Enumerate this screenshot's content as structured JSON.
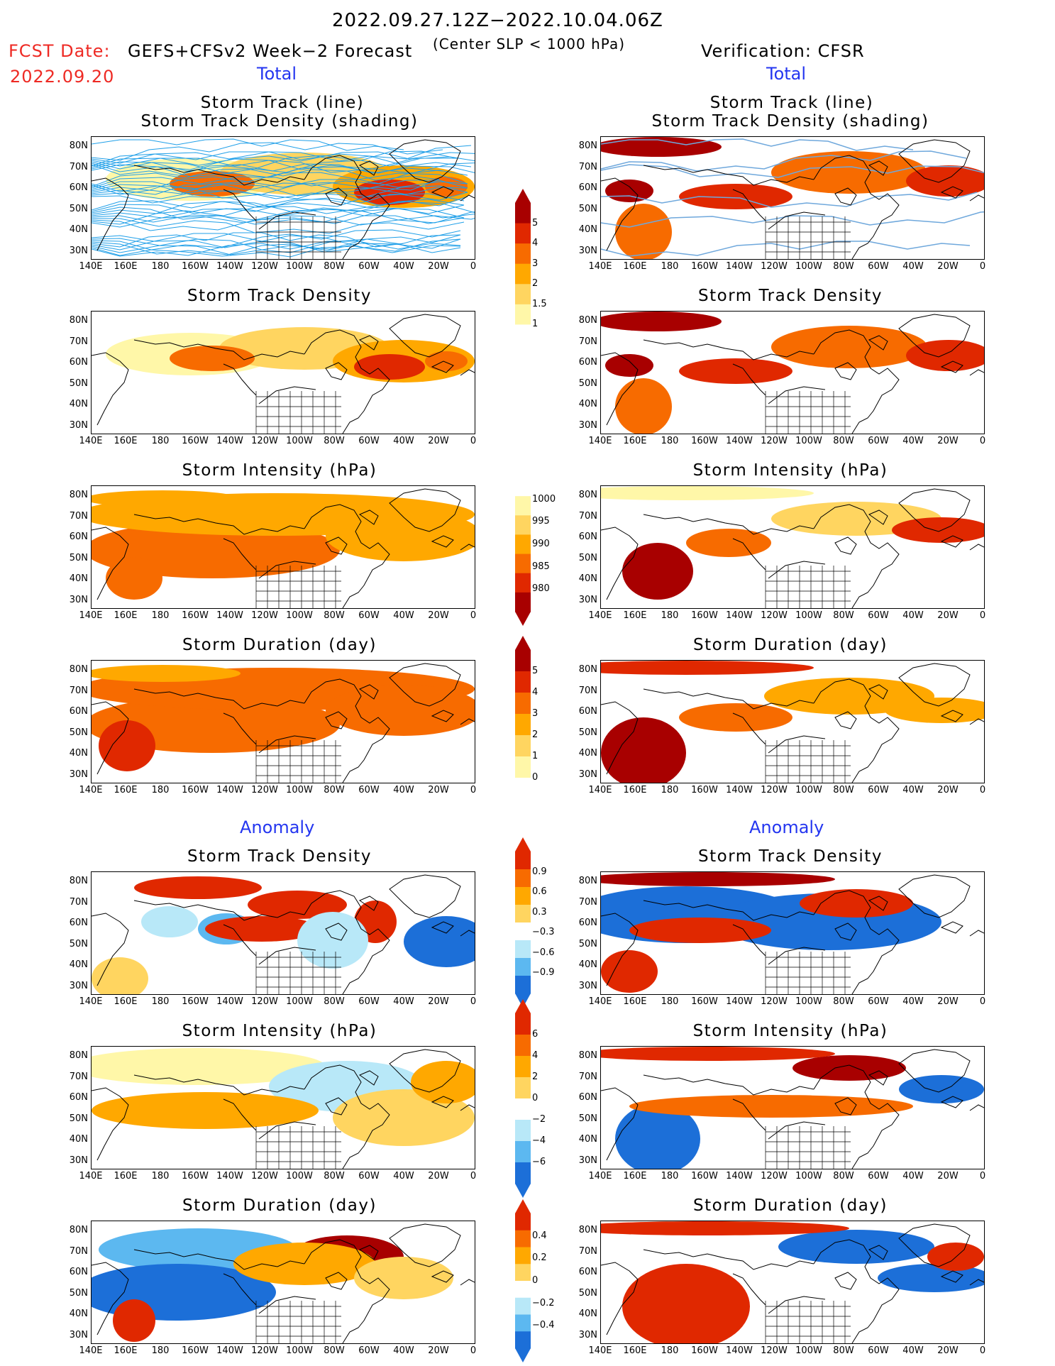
{
  "header": {
    "date_range": "2022.09.27.12Z−2022.10.04.06Z",
    "fcst_label": "FCST Date:",
    "fcst_date": "2022.09.20",
    "model": "GEFS+CFSv2 Week−2 Forecast",
    "criterion": "(Center SLP < 1000 hPa)",
    "verification": "Verification: CFSR"
  },
  "sections": {
    "total": "Total",
    "anomaly": "Anomaly"
  },
  "titles": {
    "track_line": "Storm Track (line)",
    "track_shading": "Storm Track Density (shading)",
    "density": "Storm Track Density",
    "intensity": "Storm Intensity (hPa)",
    "duration": "Storm Duration (day)"
  },
  "axes": {
    "lat": [
      "80N",
      "70N",
      "60N",
      "50N",
      "40N",
      "30N"
    ],
    "lon": [
      "140E",
      "160E",
      "180",
      "160W",
      "140W",
      "120W",
      "100W",
      "80W",
      "60W",
      "40W",
      "20W",
      "0"
    ]
  },
  "colorbars": {
    "density_total": [
      "5",
      "4",
      "3",
      "2",
      "1.5",
      "1"
    ],
    "intensity_total": [
      "1000",
      "995",
      "990",
      "985",
      "980"
    ],
    "duration_total": [
      "5",
      "4",
      "3",
      "2",
      "1",
      "0"
    ],
    "density_anom": [
      "0.9",
      "0.6",
      "0.3",
      "−0.3",
      "−0.6",
      "−0.9"
    ],
    "intensity_anom": [
      "6",
      "4",
      "2",
      "0",
      "−2",
      "−4",
      "−6"
    ],
    "duration_anom": [
      "0.4",
      "0.2",
      "0",
      "−0.2",
      "−0.4"
    ]
  },
  "colors": {
    "warm": [
      "#fff7a8",
      "#ffd560",
      "#ffa800",
      "#f76b00",
      "#e02800",
      "#a80000"
    ],
    "cool": [
      "#ffffff",
      "#b8e8f8",
      "#5cb8f0",
      "#1c6fd8"
    ],
    "track_line": "#1f9fe8"
  }
}
